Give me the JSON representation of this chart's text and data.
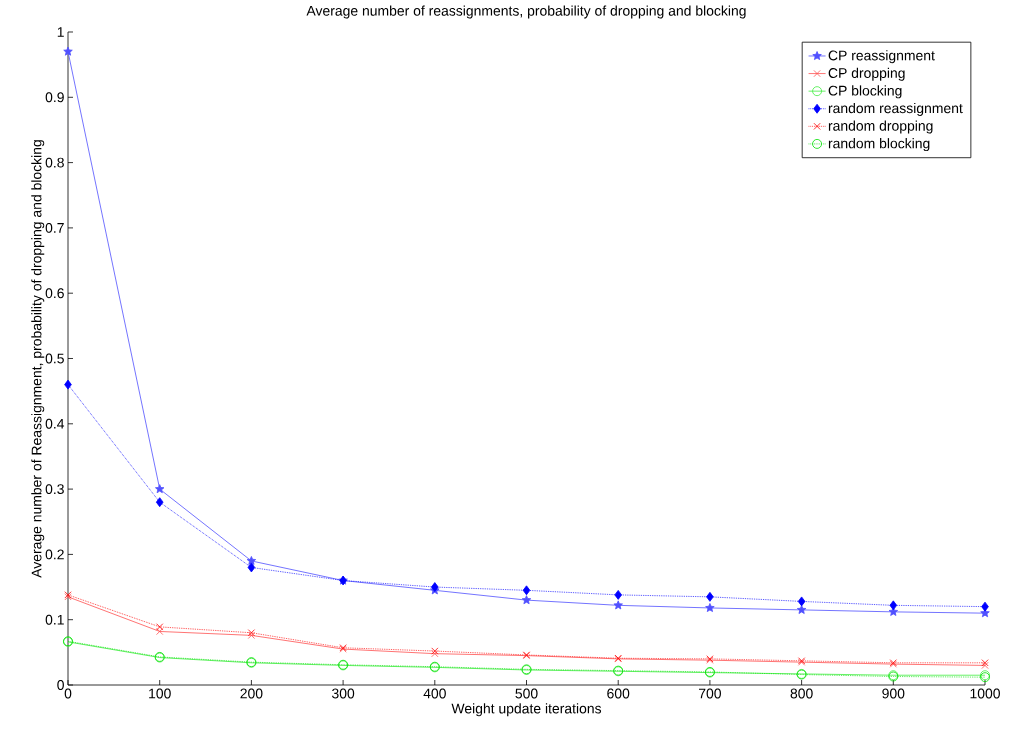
{
  "chart_data": {
    "type": "line",
    "title": "Average number of reassignments, probability of dropping and blocking",
    "xlabel": "Weight update iterations",
    "ylabel": "Average number of Reassignment, probability of dropping and blocking",
    "x": [
      0,
      100,
      200,
      300,
      400,
      500,
      600,
      700,
      800,
      900,
      1000
    ],
    "series": [
      {
        "name": "CP reassignment",
        "color": "#5050ff",
        "marker": "star",
        "line_style": "solid",
        "values": [
          0.97,
          0.3,
          0.19,
          0.16,
          0.145,
          0.13,
          0.122,
          0.118,
          0.115,
          0.112,
          0.11
        ]
      },
      {
        "name": "CP dropping",
        "color": "#ff5050",
        "marker": "cross",
        "line_style": "solid",
        "values": [
          0.135,
          0.082,
          0.076,
          0.055,
          0.048,
          0.045,
          0.04,
          0.038,
          0.035,
          0.032,
          0.03
        ]
      },
      {
        "name": "CP blocking",
        "color": "#40ee40",
        "marker": "circle",
        "line_style": "solid",
        "values": [
          0.066,
          0.042,
          0.034,
          0.03,
          0.027,
          0.023,
          0.021,
          0.019,
          0.017,
          0.015,
          0.015
        ]
      },
      {
        "name": "random reassignment",
        "color": "#0000ff",
        "marker": "diamond",
        "line_style": "dotted",
        "values": [
          0.46,
          0.28,
          0.18,
          0.16,
          0.15,
          0.145,
          0.138,
          0.135,
          0.128,
          0.122,
          0.12
        ]
      },
      {
        "name": "random dropping",
        "color": "#ff0000",
        "marker": "cross",
        "line_style": "dotted",
        "values": [
          0.138,
          0.089,
          0.08,
          0.057,
          0.052,
          0.046,
          0.041,
          0.04,
          0.037,
          0.034,
          0.034
        ]
      },
      {
        "name": "random blocking",
        "color": "#00e000",
        "marker": "circle",
        "line_style": "dotted",
        "values": [
          0.067,
          0.043,
          0.035,
          0.031,
          0.028,
          0.024,
          0.022,
          0.02,
          0.016,
          0.013,
          0.012
        ]
      }
    ],
    "xlim": [
      0,
      1000
    ],
    "ylim": [
      0,
      1
    ],
    "xticks": [
      0,
      100,
      200,
      300,
      400,
      500,
      600,
      700,
      800,
      900,
      1000
    ],
    "yticks": [
      0,
      0.1,
      0.2,
      0.3,
      0.4,
      0.5,
      0.6,
      0.7,
      0.8,
      0.9,
      1
    ],
    "legend": "top right"
  }
}
